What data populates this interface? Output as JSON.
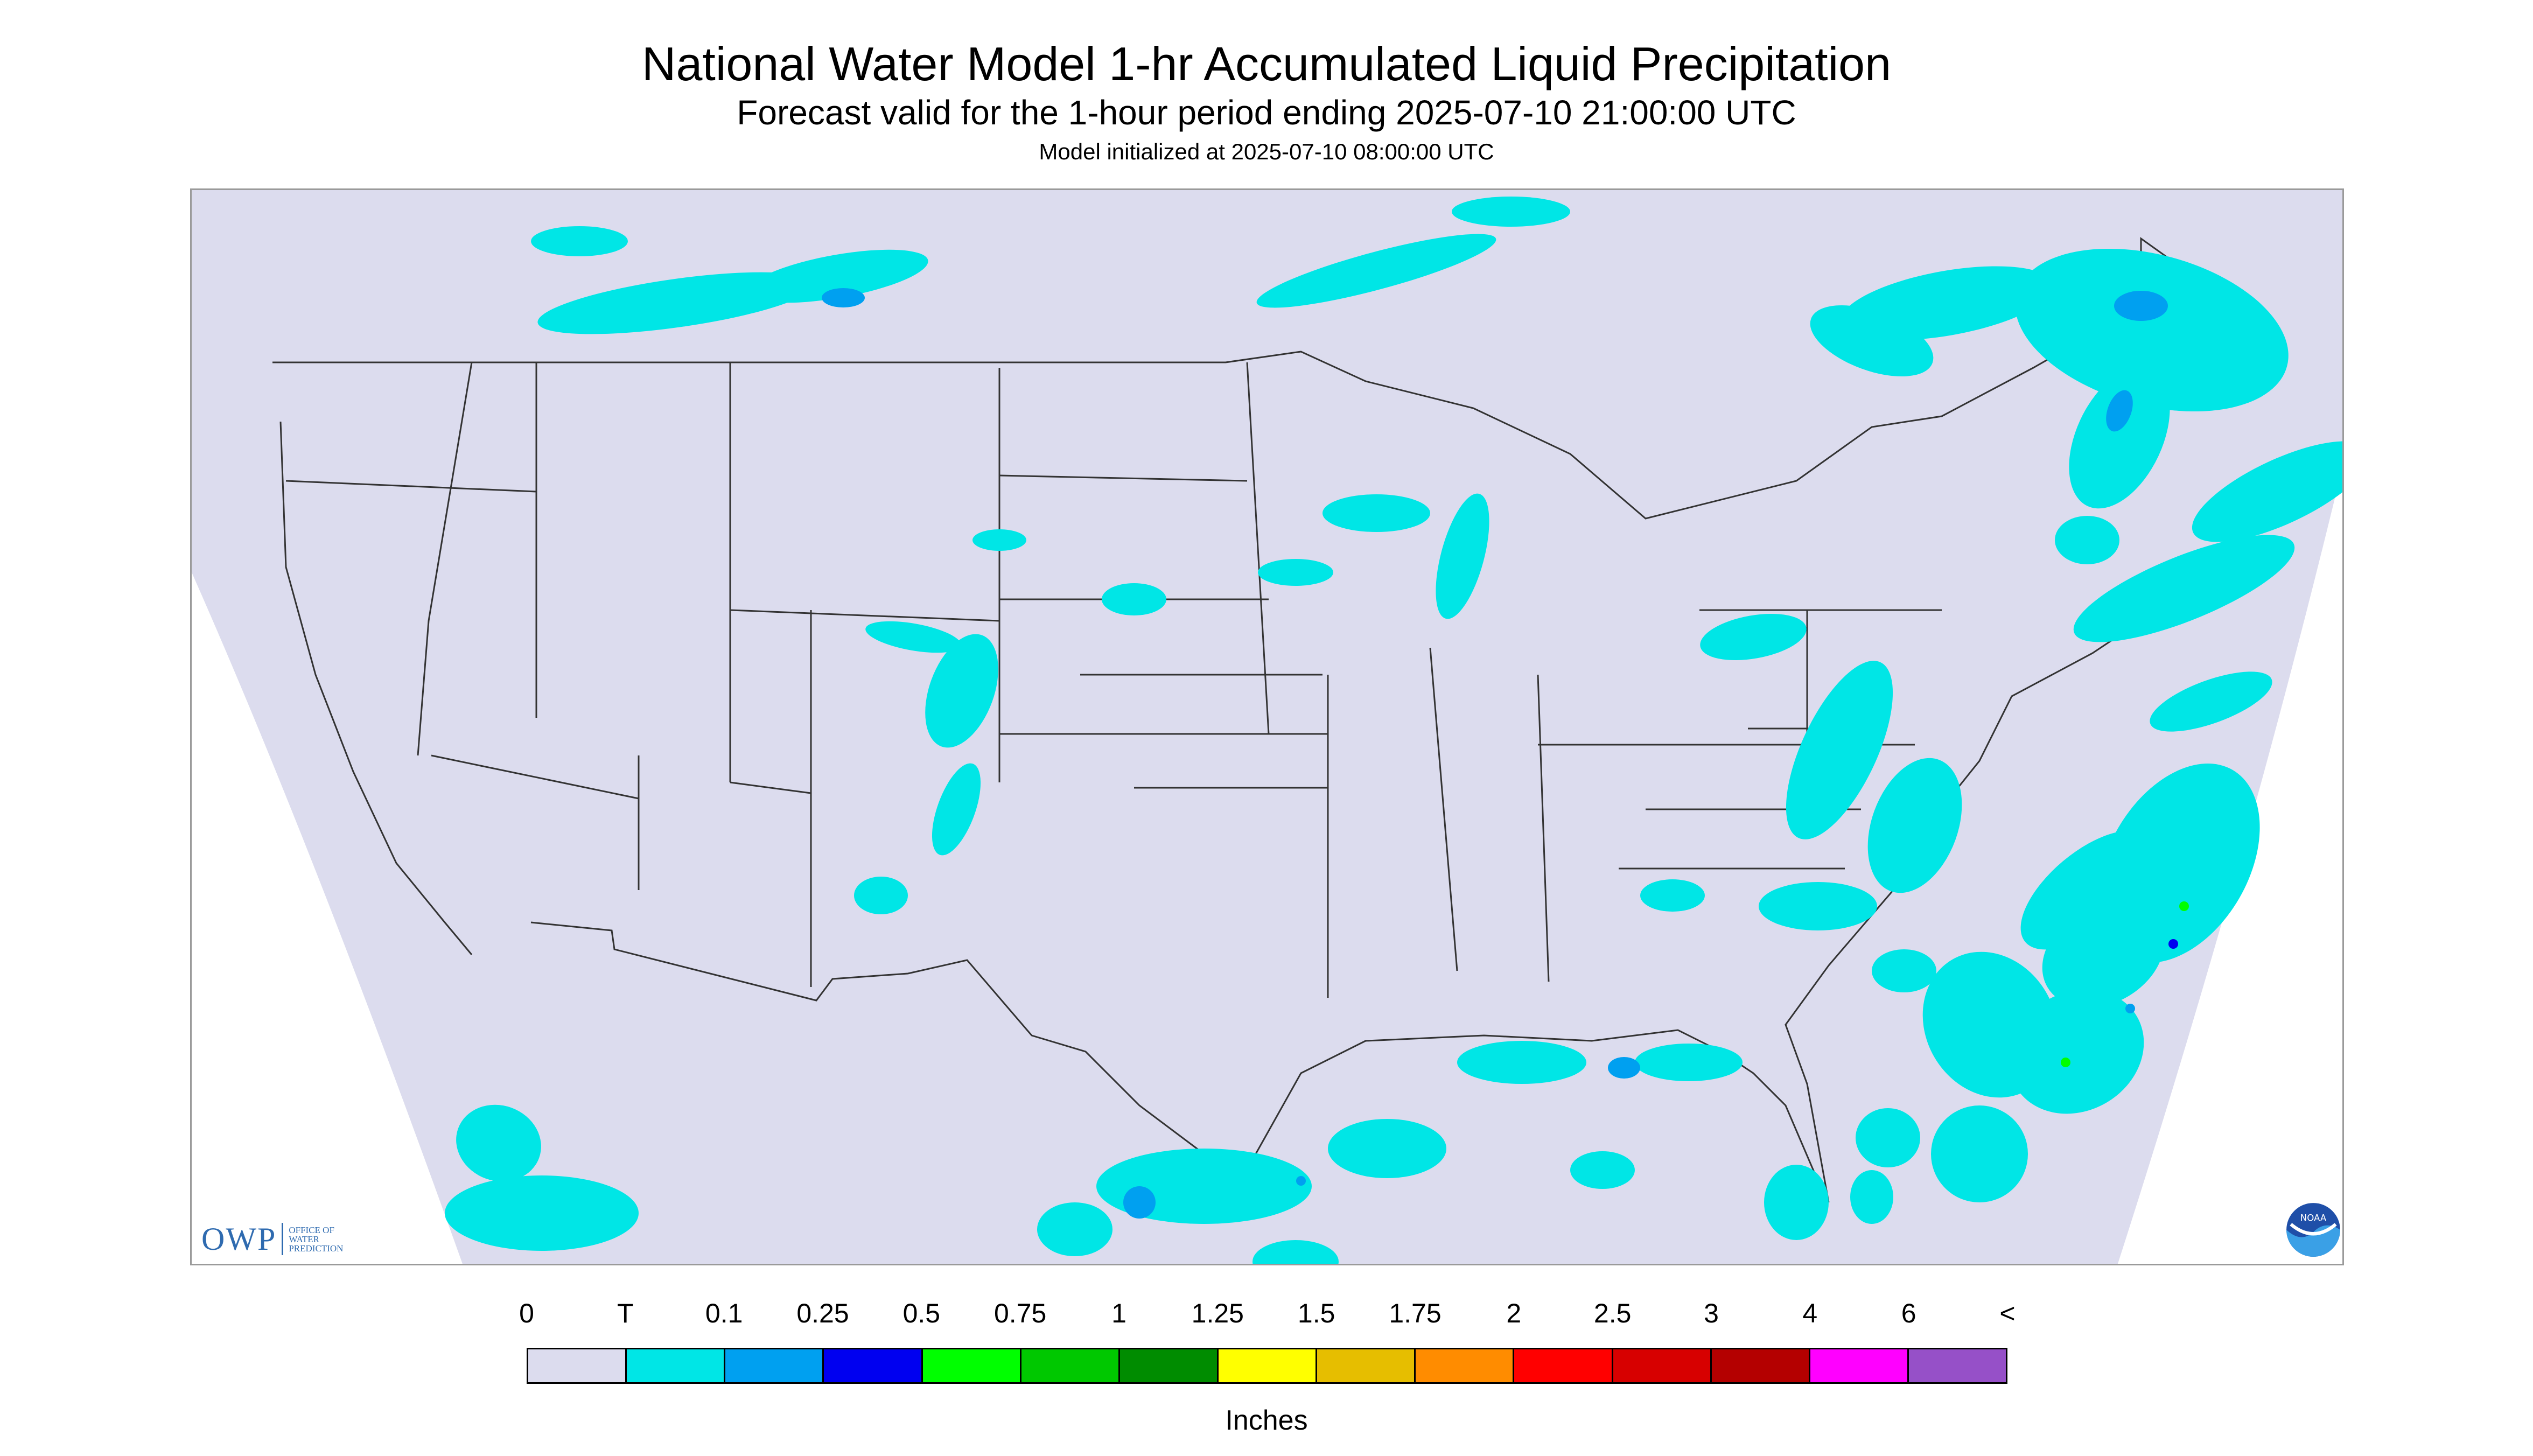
{
  "header": {
    "title": "National Water Model 1-hr Accumulated Liquid Precipitation",
    "subtitle": "Forecast valid for the 1-hour period ending 2025-07-10 21:00:00 UTC",
    "init_line": "Model initialized at 2025-07-10 08:00:00 UTC"
  },
  "logos": {
    "owp_mark": "OWP",
    "owp_text": "Office of Water Prediction",
    "noaa_text": "NOAA"
  },
  "legend": {
    "ticks": [
      "0",
      "T",
      "0.1",
      "0.25",
      "0.5",
      "0.75",
      "1",
      "1.25",
      "1.5",
      "1.75",
      "2",
      "2.5",
      "3",
      "4",
      "6",
      "<"
    ],
    "colors": [
      "#dcdcee",
      "#00e6e6",
      "#00a0f0",
      "#0000f0",
      "#00ff00",
      "#00c800",
      "#008c00",
      "#ffff00",
      "#e6be00",
      "#ff8c00",
      "#ff0000",
      "#d70000",
      "#b40000",
      "#ff00ff",
      "#9650c8"
    ],
    "units": "Inches"
  },
  "map": {
    "background_color": "#dcdcee",
    "outside_color": "#ffffff",
    "precip_colors": {
      "trace": "#00e6e6",
      "light": "#00a0f0",
      "moderate": "#0000f0",
      "heavy": "#00ff00"
    }
  }
}
